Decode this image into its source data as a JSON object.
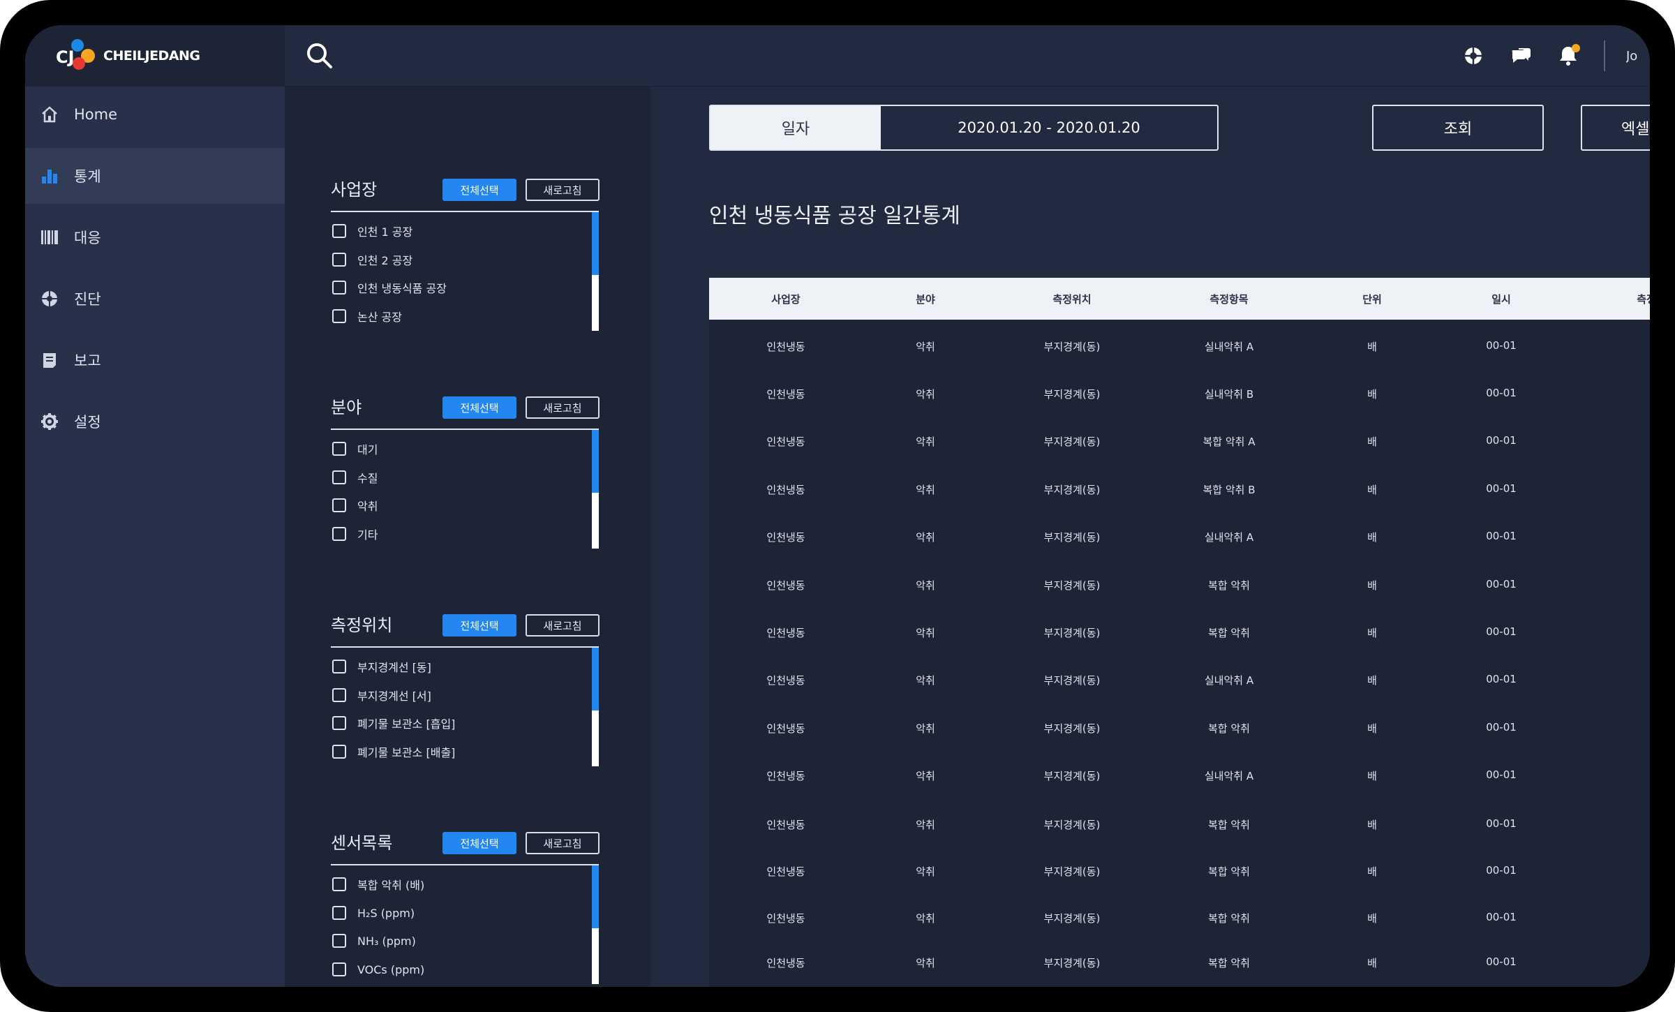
{
  "brand": {
    "logo_mark": "CJ",
    "logo_text": "CHEILJEDANG"
  },
  "topbar": {
    "icons": [
      "search-icon",
      "globe-icon",
      "chat-icon",
      "bell-icon"
    ],
    "user_label": "Jo"
  },
  "sidebar": {
    "items": [
      {
        "label": "Home",
        "icon": "home-icon",
        "active": false
      },
      {
        "label": "통계",
        "icon": "bar-chart-icon",
        "active": true
      },
      {
        "label": "대응",
        "icon": "barcode-icon",
        "active": false
      },
      {
        "label": "진단",
        "icon": "globe-icon",
        "active": false
      },
      {
        "label": "보고",
        "icon": "report-icon",
        "active": false
      },
      {
        "label": "설정",
        "icon": "gear-icon",
        "active": false
      }
    ]
  },
  "filters": {
    "select_all_label": "전체선택",
    "refresh_label": "새로고침",
    "groups": [
      {
        "title": "사업장",
        "options": [
          "인천 1 공장",
          "인천 2 공장",
          "인천 냉동식품 공장",
          "논산 공장"
        ]
      },
      {
        "title": "분야",
        "options": [
          "대기",
          "수질",
          "악취",
          "기타"
        ]
      },
      {
        "title": "측정위치",
        "options": [
          "부지경계선 [동]",
          "부지경계선 [서]",
          "폐기물 보관소 [흡입]",
          "폐기물 보관소 [배출]"
        ]
      },
      {
        "title": "센서목록",
        "options": [
          "복합 악취 (배)",
          "H₂S (ppm)",
          "NH₃ (ppm)",
          "VOCs (ppm)"
        ]
      }
    ]
  },
  "main": {
    "date_label": "일자",
    "date_range": "2020.01.20 - 2020.01.20",
    "query_label": "조회",
    "excel_label": "엑셀",
    "title": "인천 냉동식품 공장 일간통계",
    "table": {
      "columns": [
        "사업장",
        "분야",
        "측정위치",
        "측정항목",
        "단위",
        "일시",
        "측정값"
      ],
      "rows": [
        [
          "인천냉동",
          "악취",
          "부지경계(동)",
          "실내악취 A",
          "배",
          "00-01"
        ],
        [
          "인천냉동",
          "악취",
          "부지경계(동)",
          "실내악취 B",
          "배",
          "00-01"
        ],
        [
          "인천냉동",
          "악취",
          "부지경계(동)",
          "복합 악취 A",
          "배",
          "00-01"
        ],
        [
          "인천냉동",
          "악취",
          "부지경계(동)",
          "복합 악취 B",
          "배",
          "00-01"
        ],
        [
          "인천냉동",
          "악취",
          "부지경계(동)",
          "실내악취 A",
          "배",
          "00-01"
        ],
        [
          "인천냉동",
          "악취",
          "부지경계(동)",
          "복합 악취",
          "배",
          "00-01"
        ],
        [
          "인천냉동",
          "악취",
          "부지경계(동)",
          "복합 악취",
          "배",
          "00-01"
        ],
        [
          "인천냉동",
          "악취",
          "부지경계(동)",
          "실내악취 A",
          "배",
          "00-01"
        ],
        [
          "인천냉동",
          "악취",
          "부지경계(동)",
          "복합 악취",
          "배",
          "00-01"
        ],
        [
          "인천냉동",
          "악취",
          "부지경계(동)",
          "실내악취 A",
          "배",
          "00-01"
        ],
        [
          "인천냉동",
          "악취",
          "부지경계(동)",
          "복합 악취",
          "배",
          "00-01"
        ],
        [
          "인천냉동",
          "악취",
          "부지경계(동)",
          "복합 악취",
          "배",
          "00-01"
        ],
        [
          "인천냉동",
          "악취",
          "부지경계(동)",
          "복합 악취",
          "배",
          "00-01"
        ],
        [
          "인천냉동",
          "악취",
          "부지경계(동)",
          "복합 악취",
          "배",
          "00-01"
        ]
      ]
    }
  },
  "colors": {
    "accent": "#2486f0",
    "badge": "#f5a623"
  }
}
